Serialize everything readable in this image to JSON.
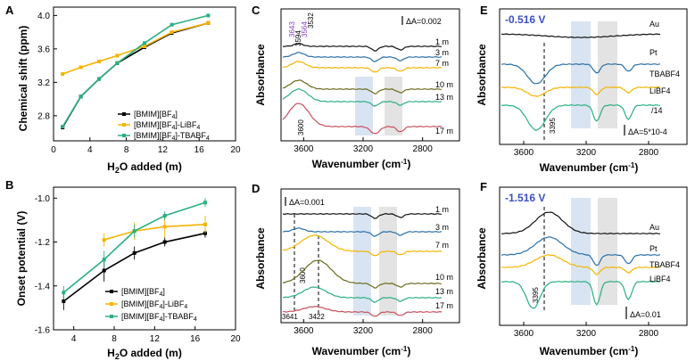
{
  "chart_data": [
    {
      "panel": "A",
      "type": "line",
      "xlabel": "H2O added (m)",
      "ylabel": "Chemical shift (ppm)",
      "xlim": [
        0,
        20
      ],
      "ylim": [
        2.5,
        4.1
      ],
      "xticks": [
        0,
        4,
        8,
        12,
        16,
        20
      ],
      "yticks": [
        2.8,
        3.2,
        3.6,
        4.0
      ],
      "legend": [
        "[BMIM][BF4]",
        "[BMIM][BF4]-LiBF4",
        "[BMIM][BF4]-TBABF4"
      ],
      "series": [
        {
          "name": "[BMIM][BF4]",
          "color": "#000000",
          "x": [
            1,
            3,
            5,
            7,
            10,
            13,
            17
          ],
          "y": [
            2.66,
            3.03,
            3.24,
            3.43,
            3.62,
            3.79,
            3.91
          ]
        },
        {
          "name": "[BMIM][BF4]-LiBF4",
          "color": "#f4b400",
          "x": [
            1,
            3,
            5,
            7,
            10,
            13,
            17
          ],
          "y": [
            3.3,
            3.38,
            3.45,
            3.52,
            3.63,
            3.8,
            3.91
          ]
        },
        {
          "name": "[BMIM][BF4]-TBABF4",
          "color": "#2ab07f",
          "x": [
            1,
            3,
            5,
            7,
            10,
            13,
            17
          ],
          "y": [
            2.67,
            3.03,
            3.24,
            3.43,
            3.67,
            3.89,
            4.0
          ]
        }
      ]
    },
    {
      "panel": "B",
      "type": "line",
      "xlabel": "H2O added (m)",
      "ylabel": "Onset potential (V)",
      "xlim": [
        2,
        20
      ],
      "ylim": [
        -1.6,
        -0.95
      ],
      "xticks": [
        4,
        8,
        12,
        16,
        20
      ],
      "yticks": [
        -1.6,
        -1.4,
        -1.2,
        -1.0
      ],
      "legend": [
        "[BMIM][BF4]",
        "[BMIM][BF4]-LiBF4",
        "[BMIM][BF4]-TBABF4"
      ],
      "series": [
        {
          "name": "[BMIM][BF4]",
          "color": "#000000",
          "x": [
            3,
            7,
            10,
            13,
            17
          ],
          "y": [
            -1.47,
            -1.33,
            -1.25,
            -1.2,
            -1.16
          ],
          "err": [
            0.04,
            0.05,
            0.03,
            0.02,
            0.02
          ]
        },
        {
          "name": "[BMIM][BF4]-LiBF4",
          "color": "#f4b400",
          "x": [
            7,
            10,
            13,
            17
          ],
          "y": [
            -1.19,
            -1.15,
            -1.13,
            -1.12
          ],
          "err": [
            0.03,
            0.04,
            0.05,
            0.04
          ]
        },
        {
          "name": "[BMIM][BF4]-TBABF4",
          "color": "#2ab07f",
          "x": [
            3,
            7,
            10,
            13,
            17
          ],
          "y": [
            -1.43,
            -1.28,
            -1.15,
            -1.08,
            -1.02
          ],
          "err": [
            0.03,
            0.04,
            0.03,
            0.02,
            0.02
          ]
        }
      ]
    },
    {
      "panel": "C",
      "type": "line",
      "xlabel": "Wavenumber (cm-1)",
      "ylabel": "Absorbance",
      "xticks": [
        3600,
        3200,
        2800
      ],
      "scale_bar": "ΔA=0.002",
      "peak_labels": [
        "3643",
        "3594",
        "3564",
        "3532",
        "3600"
      ],
      "traces": [
        {
          "label": "1 m",
          "color": "#111111"
        },
        {
          "label": "3 m",
          "color": "#2a6fa8"
        },
        {
          "label": "7 m",
          "color": "#f4b400"
        },
        {
          "label": "10 m",
          "color": "#6b6a1e"
        },
        {
          "label": "13 m",
          "color": "#2ab07f"
        },
        {
          "label": "17 m",
          "color": "#c8505f"
        }
      ]
    },
    {
      "panel": "D",
      "type": "line",
      "xlabel": "Wavenumber (cm-1)",
      "ylabel": "Absorbance",
      "xticks": [
        3600,
        3200,
        2800
      ],
      "scale_bar": "ΔA=0.001",
      "peak_labels": [
        "3600",
        "3641",
        "3422"
      ],
      "traces": [
        {
          "label": "1 m",
          "color": "#111111"
        },
        {
          "label": "3 m",
          "color": "#2a6fa8"
        },
        {
          "label": "7 m",
          "color": "#f4b400"
        },
        {
          "label": "10 m",
          "color": "#6b6a1e"
        },
        {
          "label": "13 m",
          "color": "#2ab07f"
        },
        {
          "label": "17 m",
          "color": "#c8505f"
        }
      ]
    },
    {
      "panel": "E",
      "type": "line",
      "potential": "-0.516 V",
      "xlabel": "Wavenumber (cm-1)",
      "ylabel": "Absorbance",
      "xticks": [
        3600,
        3200,
        2800
      ],
      "scale_bar": "ΔA=5*10-4",
      "peak_label": "3395",
      "divide_note": "/14",
      "traces": [
        {
          "label": "Au",
          "color": "#111111"
        },
        {
          "label": "Pt",
          "color": "#2a6fa8"
        },
        {
          "label": "TBABF4",
          "color": "#f4b400"
        },
        {
          "label": "LiBF4",
          "color": "#2ab07f"
        }
      ]
    },
    {
      "panel": "F",
      "type": "line",
      "potential": "-1.516 V",
      "xlabel": "Wavenumber (cm-1)",
      "ylabel": "Absorbance",
      "xticks": [
        3600,
        3200,
        2800
      ],
      "scale_bar": "ΔA=0.01",
      "peak_label": "3395",
      "traces": [
        {
          "label": "Au",
          "color": "#111111"
        },
        {
          "label": "Pt",
          "color": "#2a6fa8"
        },
        {
          "label": "TBABF4",
          "color": "#f4b400"
        },
        {
          "label": "LiBF4",
          "color": "#2ab07f"
        }
      ]
    }
  ]
}
